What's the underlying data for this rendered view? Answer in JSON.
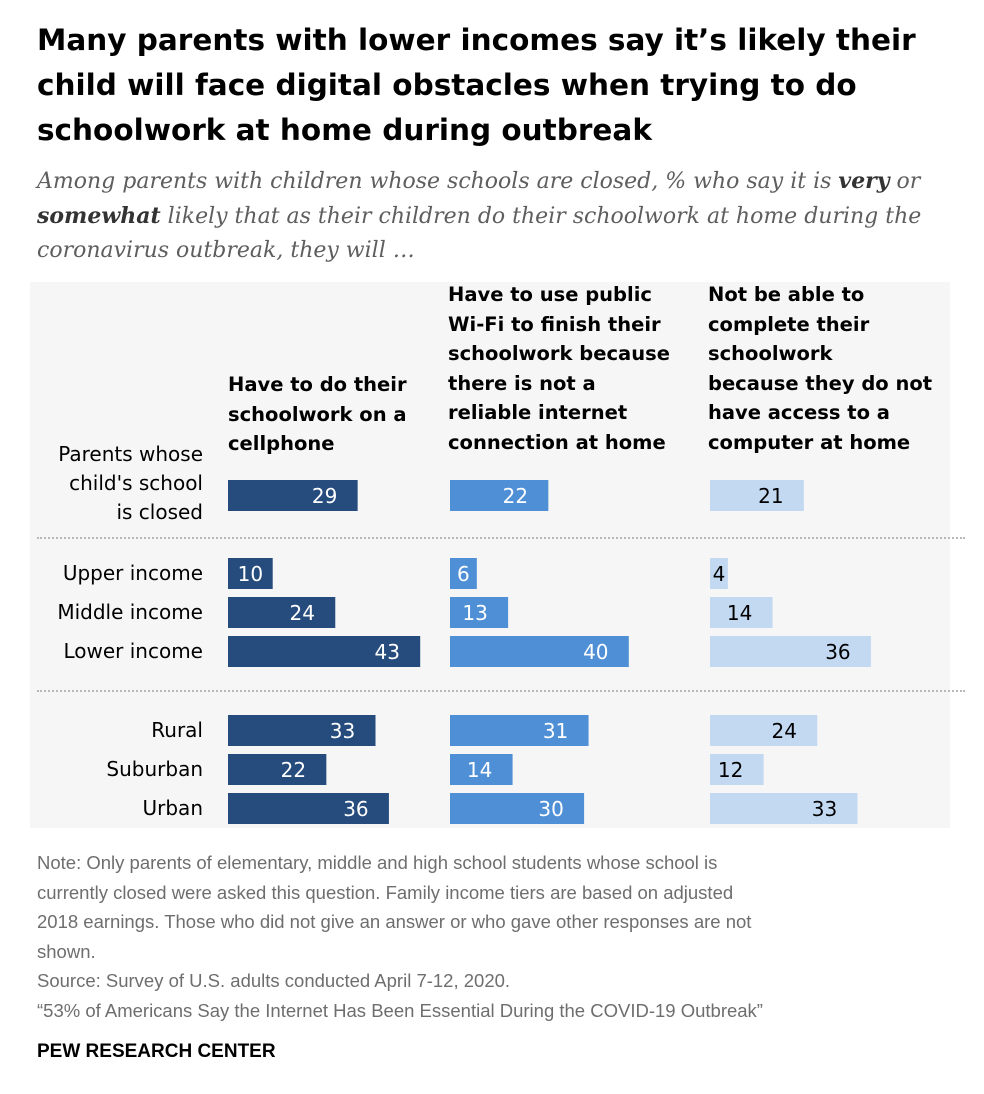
{
  "title": "Many parents with lower incomes say it’s likely their child will face digital obstacles when trying to do schoolwork at home during outbreak",
  "subtitle": {
    "part1": "Among parents with children whose schools are closed, % who say it is ",
    "very": "very",
    "part2": " or ",
    "somewhat": "somewhat",
    "part3": " likely that as their children do their schoolwork at home during the coronavirus outbreak, they will …"
  },
  "chart_data": {
    "type": "bar",
    "columns": [
      "Have to do their schoolwork on a cellphone",
      "Have to use public Wi-Fi to finish their schoolwork because there is not a reliable internet connection at home",
      "Not be able to complete their schoolwork because they do not have access to a computer at home"
    ],
    "categories": [
      "Parents whose child's school is closed",
      "Upper income",
      "Middle income",
      "Lower income",
      "Rural",
      "Suburban",
      "Urban"
    ],
    "series": [
      {
        "name": "Have to do their schoolwork on a cellphone",
        "values": [
          29,
          10,
          24,
          43,
          33,
          22,
          36
        ]
      },
      {
        "name": "Have to use public Wi-Fi to finish their schoolwork because there is not a reliable internet connection at home",
        "values": [
          22,
          6,
          13,
          40,
          31,
          14,
          30
        ]
      },
      {
        "name": "Not be able to complete their schoolwork because they do not have access to a computer at home",
        "values": [
          21,
          4,
          14,
          36,
          24,
          12,
          33
        ]
      }
    ],
    "colors": [
      "#264c7e",
      "#4f8fd6",
      "#c3d9f2"
    ],
    "label_colors": [
      "#ffffff",
      "#ffffff",
      "#000000"
    ]
  },
  "column_headers": {
    "col1": [
      "Have to do their",
      "schoolwork on a",
      "cellphone"
    ],
    "col2": [
      "Have to use public",
      "Wi-Fi to finish their",
      "schoolwork because",
      "there is not a",
      "reliable internet",
      "connection at home"
    ],
    "col3": [
      "Not be able to",
      "complete their",
      "schoolwork",
      "because they do not",
      "have access to a",
      "computer at home"
    ]
  },
  "row_labels": {
    "closed": [
      "Parents whose",
      "child's school",
      "is closed"
    ],
    "upper": "Upper income",
    "middle": "Middle income",
    "lower": "Lower income",
    "rural": "Rural",
    "suburban": "Suburban",
    "urban": "Urban"
  },
  "note": {
    "line1": "Note: Only parents of elementary, middle and high school students whose school is",
    "line2": "currently closed were asked this question. Family income tiers are based on adjusted",
    "line3": "2018 earnings. Those who did not give an answer or who gave other responses are not",
    "line4": "shown.",
    "source": "Source: Survey of U.S. adults conducted April 7-12, 2020.",
    "report": "“53% of Americans Say the Internet Has Been Essential During the COVID-19 Outbreak”"
  },
  "brand": "PEW RESEARCH CENTER"
}
